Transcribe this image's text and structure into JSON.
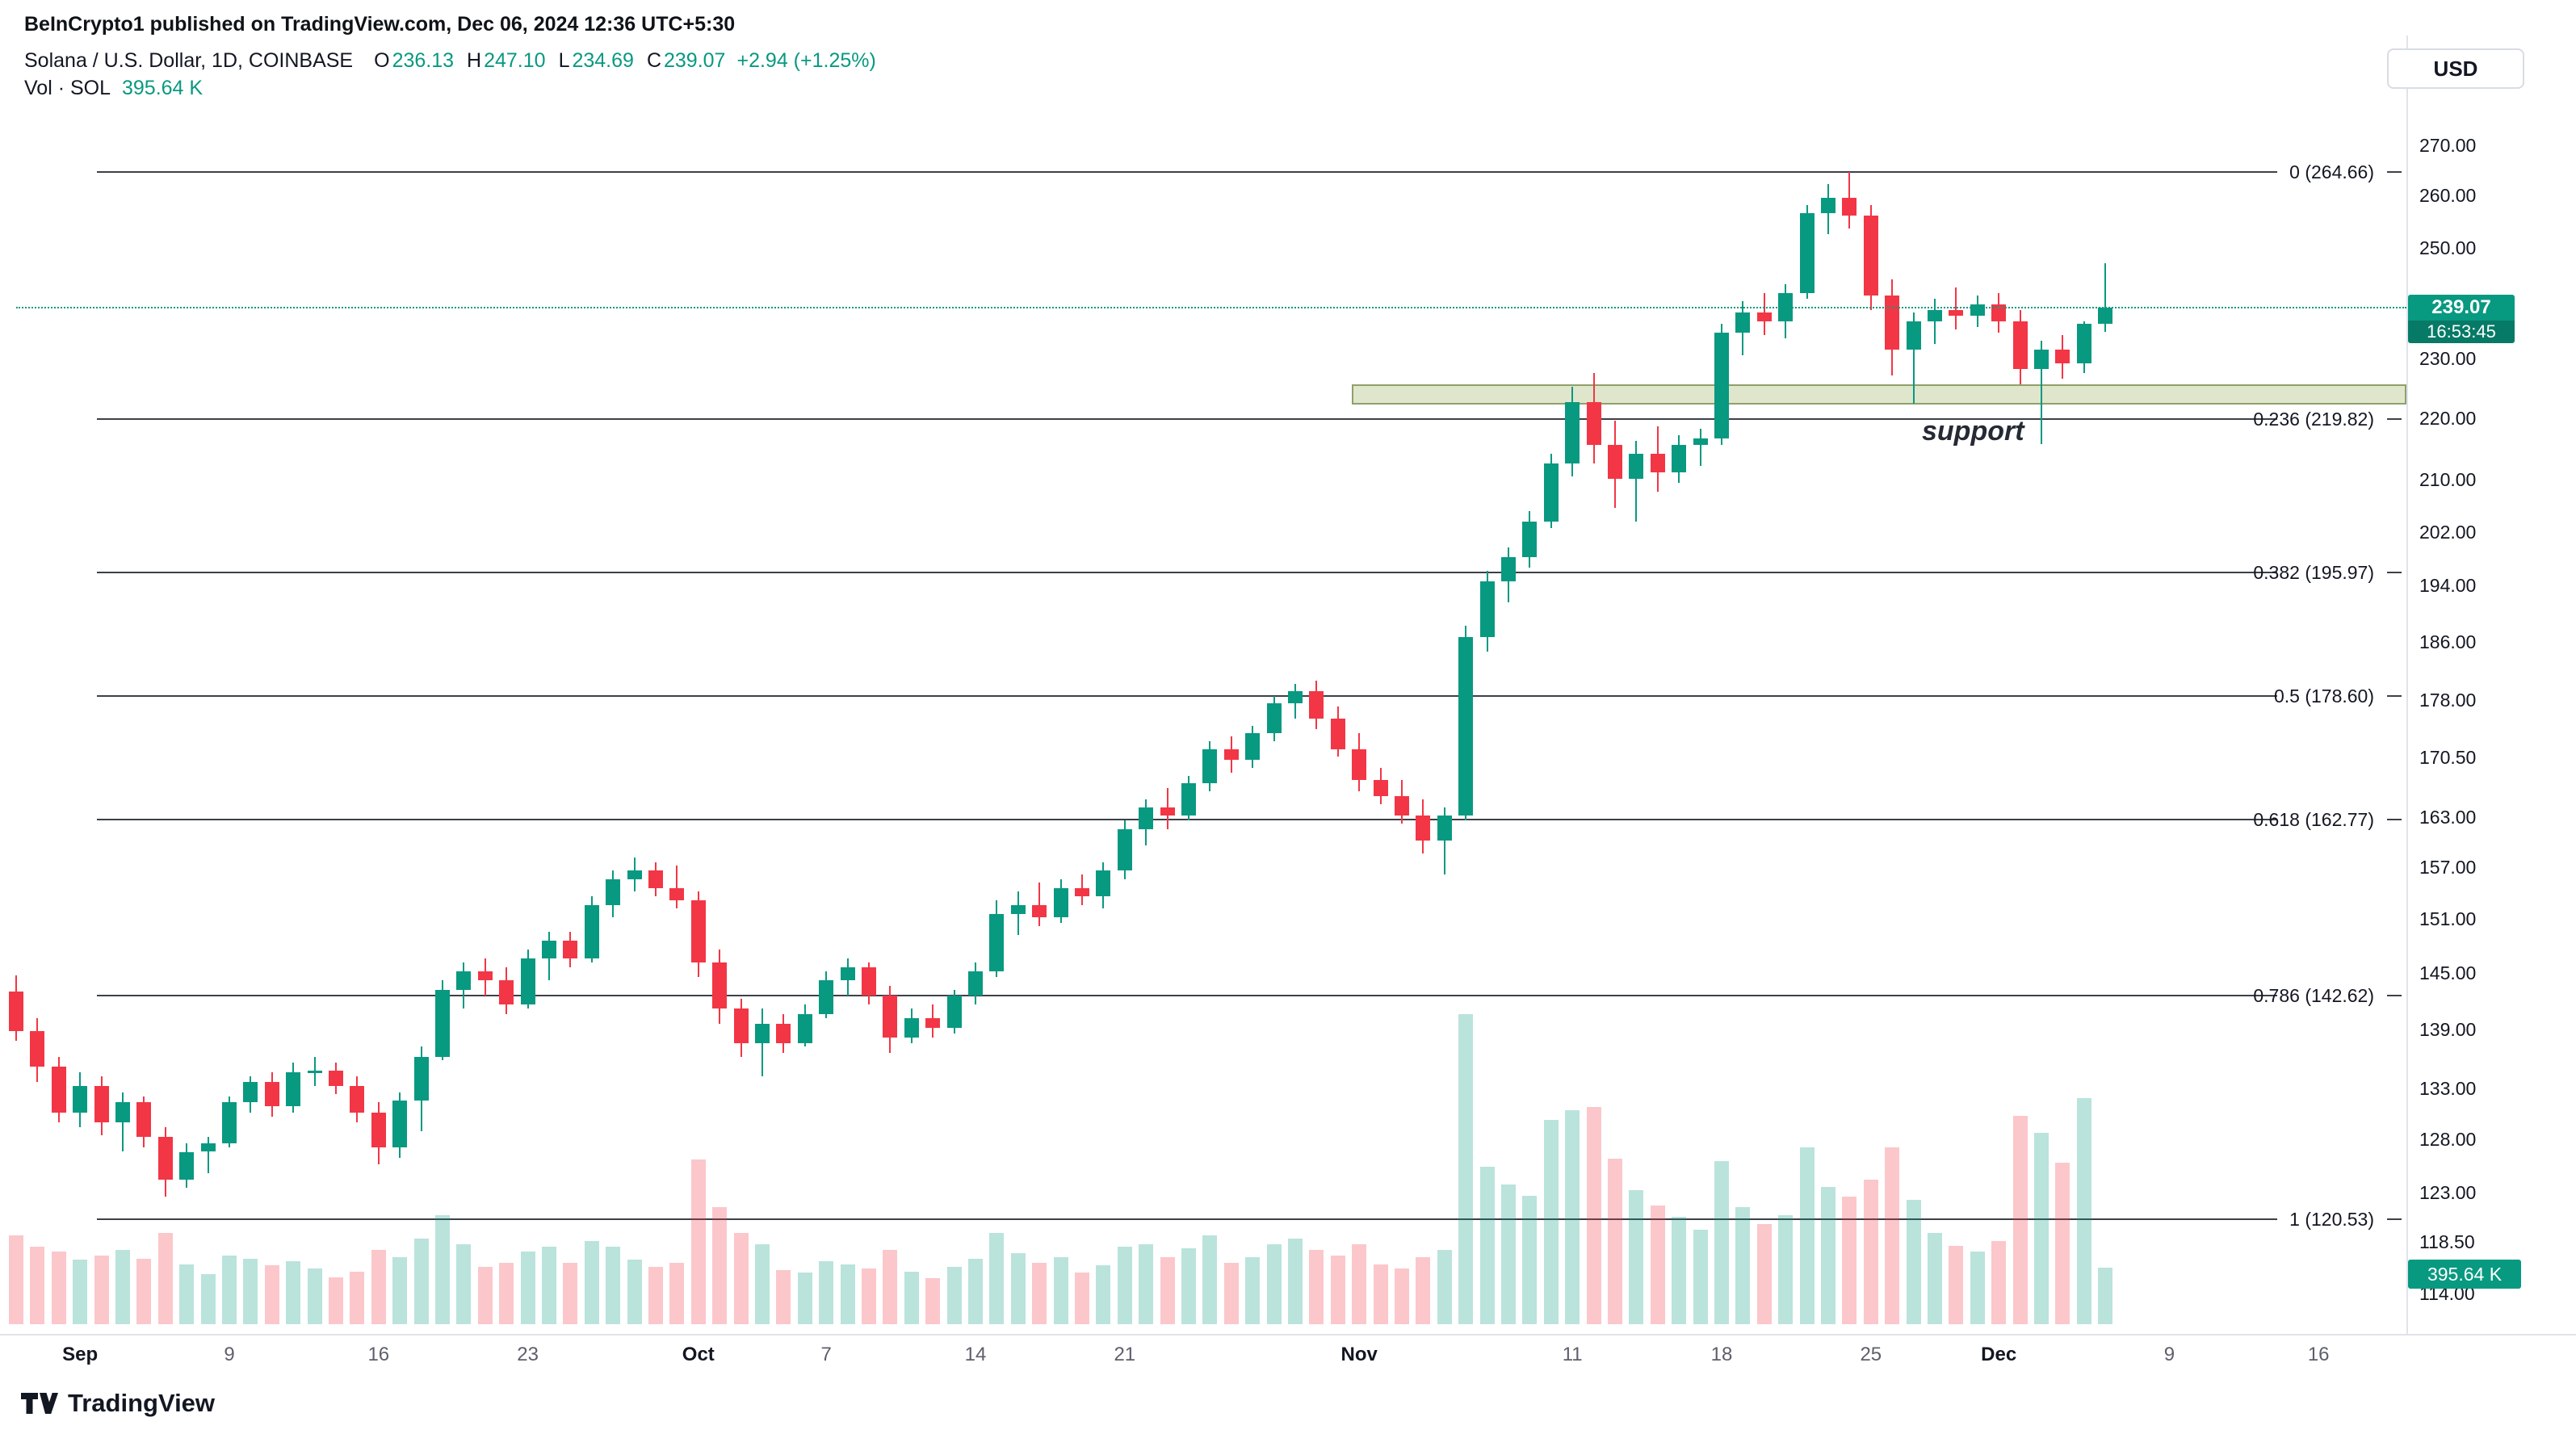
{
  "attribution": "BeInCrypto1 published on TradingView.com, Dec 06, 2024 12:36 UTC+5:30",
  "legend": {
    "symbol": "Solana / U.S. Dollar, 1D, COINBASE",
    "ohlc": {
      "o_label": "O",
      "o": "236.13",
      "h_label": "H",
      "h": "247.10",
      "l_label": "L",
      "l": "234.69",
      "c_label": "C",
      "c": "239.07",
      "change": "+2.94 (+1.25%)"
    },
    "volume_label": "Vol · SOL",
    "volume_value": "395.64 K"
  },
  "currency_button": "USD",
  "footer": {
    "brand": "TradingView"
  },
  "colors": {
    "up": "#089981",
    "down": "#f23645",
    "vol_up": "rgba(8,153,129,0.28)",
    "vol_down": "rgba(242,54,69,0.28)",
    "zone_fill": "rgba(170,190,120,0.38)",
    "zone_border": "#8fa06a",
    "countdown_bg": "#067a66",
    "text": "#131722",
    "muted": "#5d606b",
    "axis_border": "#e0e3eb"
  },
  "chart_data": {
    "type": "candlestick+volume",
    "title": "Solana / U.S. Dollar, 1D, COINBASE",
    "scale": "log",
    "grid": false,
    "price_axis": {
      "min": 114,
      "max": 270,
      "ticks": [
        "270.00",
        "260.00",
        "250.00",
        "230.00",
        "220.00",
        "210.00",
        "202.00",
        "194.00",
        "186.00",
        "178.00",
        "170.50",
        "163.00",
        "157.00",
        "151.00",
        "145.00",
        "139.00",
        "133.00",
        "128.00",
        "123.00",
        "118.50",
        "114.00"
      ]
    },
    "current": {
      "value": 239.07,
      "price": "239.07",
      "countdown": "16:53:45"
    },
    "volume_badge": "395.64 K",
    "fib_levels": [
      {
        "label": "0 (264.66)",
        "price": 264.66
      },
      {
        "label": "0.236 (219.82)",
        "price": 219.82
      },
      {
        "label": "0.382 (195.97)",
        "price": 195.97
      },
      {
        "label": "0.5 (178.60)",
        "price": 178.6
      },
      {
        "label": "0.618 (162.77)",
        "price": 162.77
      },
      {
        "label": "0.786 (142.62)",
        "price": 142.62
      },
      {
        "label": "1 (120.53)",
        "price": 120.53
      }
    ],
    "support_zone": {
      "top": 225.6,
      "bottom": 222.2,
      "label": "support"
    },
    "x_axis": [
      {
        "text": "Sep",
        "idx": 3,
        "major": true
      },
      {
        "text": "9",
        "idx": 10,
        "major": false
      },
      {
        "text": "16",
        "idx": 17,
        "major": false
      },
      {
        "text": "23",
        "idx": 24,
        "major": false
      },
      {
        "text": "Oct",
        "idx": 32,
        "major": true
      },
      {
        "text": "7",
        "idx": 38,
        "major": false
      },
      {
        "text": "14",
        "idx": 45,
        "major": false
      },
      {
        "text": "21",
        "idx": 52,
        "major": false
      },
      {
        "text": "Nov",
        "idx": 63,
        "major": true
      },
      {
        "text": "11",
        "idx": 73,
        "major": false
      },
      {
        "text": "18",
        "idx": 80,
        "major": false
      },
      {
        "text": "25",
        "idx": 87,
        "major": false
      },
      {
        "text": "Dec",
        "idx": 93,
        "major": true
      },
      {
        "text": "9",
        "idx": 101,
        "major": false
      },
      {
        "text": "16",
        "idx": 108,
        "major": false
      }
    ],
    "candles_format": [
      "open",
      "high",
      "low",
      "close",
      "volume_k"
    ],
    "candles": [
      [
        143.0,
        144.8,
        137.8,
        138.8,
        620
      ],
      [
        138.8,
        140.2,
        133.6,
        135.2,
        540
      ],
      [
        135.2,
        136.2,
        129.6,
        130.6,
        510
      ],
      [
        130.6,
        134.6,
        129.2,
        133.2,
        450
      ],
      [
        133.2,
        134.2,
        128.4,
        129.6,
        480
      ],
      [
        129.6,
        132.6,
        126.8,
        131.6,
        520
      ],
      [
        131.6,
        132.2,
        127.2,
        128.2,
        460
      ],
      [
        128.2,
        129.2,
        122.6,
        124.2,
        640
      ],
      [
        124.2,
        127.6,
        123.4,
        126.8,
        420
      ],
      [
        126.8,
        128.2,
        124.8,
        127.6,
        350
      ],
      [
        127.6,
        132.2,
        127.2,
        131.6,
        480
      ],
      [
        131.6,
        134.2,
        130.6,
        133.6,
        460
      ],
      [
        133.6,
        134.6,
        130.2,
        131.2,
        410
      ],
      [
        131.2,
        135.6,
        130.6,
        134.6,
        440
      ],
      [
        134.6,
        136.2,
        133.2,
        134.8,
        390
      ],
      [
        134.8,
        135.6,
        132.4,
        133.2,
        330
      ],
      [
        133.2,
        134.2,
        129.6,
        130.6,
        370
      ],
      [
        130.6,
        131.6,
        125.6,
        127.2,
        520
      ],
      [
        127.2,
        132.6,
        126.2,
        131.8,
        470
      ],
      [
        131.8,
        137.2,
        128.8,
        136.2,
        600
      ],
      [
        136.2,
        144.2,
        135.8,
        143.2,
        760
      ],
      [
        143.2,
        146.2,
        141.2,
        145.2,
        560
      ],
      [
        145.2,
        146.6,
        142.6,
        144.2,
        400
      ],
      [
        144.2,
        145.6,
        140.6,
        141.6,
        430
      ],
      [
        141.6,
        147.6,
        141.2,
        146.6,
        510
      ],
      [
        146.6,
        149.6,
        144.2,
        148.6,
        540
      ],
      [
        148.6,
        149.6,
        145.6,
        146.6,
        430
      ],
      [
        146.6,
        153.6,
        146.2,
        152.6,
        580
      ],
      [
        152.6,
        156.6,
        151.2,
        155.6,
        540
      ],
      [
        155.6,
        158.2,
        154.2,
        156.6,
        450
      ],
      [
        156.6,
        157.6,
        153.6,
        154.6,
        400
      ],
      [
        154.6,
        157.2,
        152.2,
        153.2,
        430
      ],
      [
        153.2,
        154.2,
        144.6,
        146.2,
        1150
      ],
      [
        146.2,
        147.6,
        139.6,
        141.2,
        820
      ],
      [
        141.2,
        142.2,
        136.2,
        137.6,
        640
      ],
      [
        137.6,
        141.2,
        134.2,
        139.6,
        560
      ],
      [
        139.6,
        140.6,
        136.6,
        137.6,
        380
      ],
      [
        137.6,
        141.6,
        137.2,
        140.6,
        360
      ],
      [
        140.6,
        145.2,
        140.2,
        144.2,
        440
      ],
      [
        144.2,
        146.6,
        142.6,
        145.6,
        420
      ],
      [
        145.6,
        146.2,
        141.6,
        142.6,
        390
      ],
      [
        142.6,
        143.6,
        136.6,
        138.2,
        520
      ],
      [
        138.2,
        141.2,
        137.6,
        140.2,
        370
      ],
      [
        140.2,
        141.6,
        138.2,
        139.2,
        320
      ],
      [
        139.2,
        143.2,
        138.6,
        142.6,
        400
      ],
      [
        142.6,
        146.2,
        141.6,
        145.2,
        460
      ],
      [
        145.2,
        153.2,
        144.6,
        151.6,
        640
      ],
      [
        151.6,
        154.2,
        149.2,
        152.6,
        500
      ],
      [
        152.6,
        155.2,
        150.2,
        151.2,
        430
      ],
      [
        151.2,
        155.6,
        150.6,
        154.6,
        470
      ],
      [
        154.6,
        156.2,
        152.6,
        153.6,
        360
      ],
      [
        153.6,
        157.6,
        152.2,
        156.6,
        410
      ],
      [
        156.6,
        162.6,
        155.6,
        161.6,
        540
      ],
      [
        161.6,
        165.2,
        159.6,
        164.2,
        560
      ],
      [
        164.2,
        166.6,
        161.6,
        163.2,
        470
      ],
      [
        163.2,
        168.2,
        162.6,
        167.2,
        530
      ],
      [
        167.2,
        172.6,
        166.2,
        171.6,
        620
      ],
      [
        171.6,
        173.2,
        168.6,
        170.2,
        430
      ],
      [
        170.2,
        174.6,
        169.2,
        173.6,
        470
      ],
      [
        173.6,
        178.6,
        172.6,
        177.6,
        560
      ],
      [
        177.6,
        180.2,
        175.6,
        179.2,
        600
      ],
      [
        179.2,
        180.6,
        174.2,
        175.6,
        520
      ],
      [
        175.6,
        177.2,
        170.6,
        171.6,
        480
      ],
      [
        171.6,
        173.6,
        166.2,
        167.6,
        560
      ],
      [
        167.6,
        169.2,
        164.6,
        165.6,
        420
      ],
      [
        165.6,
        167.6,
        162.2,
        163.2,
        390
      ],
      [
        163.2,
        165.2,
        158.6,
        160.2,
        470
      ],
      [
        160.2,
        164.2,
        156.2,
        163.2,
        520
      ],
      [
        163.2,
        188.2,
        162.6,
        186.6,
        2170
      ],
      [
        186.6,
        196.2,
        184.6,
        194.6,
        1100
      ],
      [
        194.6,
        199.6,
        191.6,
        198.2,
        980
      ],
      [
        198.2,
        205.2,
        196.6,
        203.6,
        900
      ],
      [
        203.6,
        214.2,
        202.6,
        212.6,
        1430
      ],
      [
        212.6,
        225.2,
        210.6,
        222.6,
        1500
      ],
      [
        222.6,
        227.6,
        212.6,
        215.6,
        1520
      ],
      [
        215.6,
        219.6,
        205.6,
        210.2,
        1160
      ],
      [
        210.2,
        216.2,
        203.6,
        214.2,
        940
      ],
      [
        214.2,
        218.6,
        208.2,
        211.2,
        830
      ],
      [
        211.2,
        217.2,
        209.6,
        215.6,
        750
      ],
      [
        215.6,
        218.2,
        212.2,
        216.6,
        660
      ],
      [
        216.6,
        236.2,
        215.6,
        234.6,
        1140
      ],
      [
        234.6,
        240.2,
        230.6,
        238.2,
        820
      ],
      [
        238.2,
        241.6,
        234.2,
        236.6,
        700
      ],
      [
        236.6,
        243.2,
        233.6,
        241.6,
        760
      ],
      [
        241.6,
        258.2,
        240.6,
        256.6,
        1240
      ],
      [
        256.6,
        262.2,
        252.6,
        259.6,
        960
      ],
      [
        259.6,
        264.7,
        253.6,
        256.2,
        890
      ],
      [
        256.2,
        258.2,
        238.6,
        241.2,
        1010
      ],
      [
        241.2,
        244.2,
        227.2,
        231.6,
        1240
      ],
      [
        231.6,
        238.2,
        222.4,
        236.6,
        870
      ],
      [
        236.6,
        240.6,
        232.6,
        238.6,
        640
      ],
      [
        238.6,
        242.6,
        235.2,
        237.6,
        550
      ],
      [
        237.6,
        241.2,
        235.6,
        239.6,
        510
      ],
      [
        239.6,
        241.6,
        234.6,
        236.6,
        580
      ],
      [
        236.6,
        238.6,
        225.6,
        228.2,
        1460
      ],
      [
        228.2,
        233.2,
        215.8,
        231.6,
        1340
      ],
      [
        231.6,
        234.2,
        226.6,
        229.2,
        1130
      ],
      [
        229.2,
        236.6,
        227.6,
        236.1,
        1580
      ],
      [
        236.13,
        247.1,
        234.69,
        239.07,
        396
      ]
    ]
  }
}
